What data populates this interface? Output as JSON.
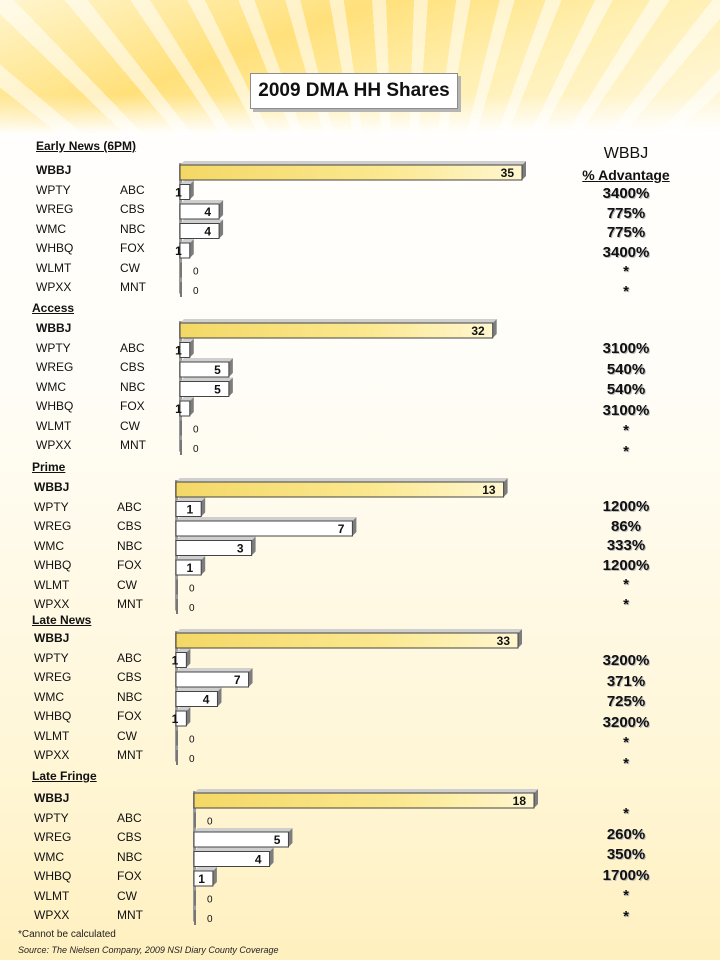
{
  "title": "2009 DMA HH Shares",
  "advantage_header": {
    "line1": "WBBJ",
    "line2": "% Advantage"
  },
  "footnote": "*Cannot be calculated",
  "source": "Source: The Nielsen Company, 2009 NSI Diary County Coverage",
  "colors": {
    "highlight_bar": "#fbe88f",
    "bar": "#ffffff",
    "bar_edge": "#444444",
    "background_accent": "#ffe07a"
  },
  "chart_data": {
    "type": "bar",
    "orientation": "horizontal",
    "stations": [
      "WBBJ",
      "WPTY",
      "WREG",
      "WMC",
      "WHBQ",
      "WLMT",
      "WPXX"
    ],
    "networks": [
      "",
      "ABC",
      "CBS",
      "NBC",
      "FOX",
      "CW",
      "MNT"
    ],
    "dayparts": [
      {
        "name": "Early News (6PM)",
        "values": [
          35,
          1,
          4,
          4,
          1,
          0,
          0
        ],
        "advantage": [
          "3400%",
          "775%",
          "775%",
          "3400%",
          "*",
          "*"
        ]
      },
      {
        "name": "Access",
        "values": [
          32,
          1,
          5,
          5,
          1,
          0,
          0
        ],
        "advantage": [
          "3100%",
          "540%",
          "540%",
          "3100%",
          "*",
          "*"
        ]
      },
      {
        "name": "Prime",
        "values": [
          13,
          1,
          7,
          3,
          1,
          0,
          0
        ],
        "advantage": [
          "1200%",
          "86%",
          "333%",
          "1200%",
          "*",
          "*"
        ]
      },
      {
        "name": "Late News",
        "values": [
          33,
          1,
          7,
          4,
          1,
          0,
          0
        ],
        "advantage": [
          "3200%",
          "371%",
          "725%",
          "3200%",
          "*",
          "*"
        ]
      },
      {
        "name": "Late Fringe",
        "values": [
          18,
          0,
          5,
          4,
          1,
          0,
          0
        ],
        "advantage": [
          "*",
          "260%",
          "350%",
          "1700%",
          "*",
          "*"
        ]
      }
    ]
  }
}
